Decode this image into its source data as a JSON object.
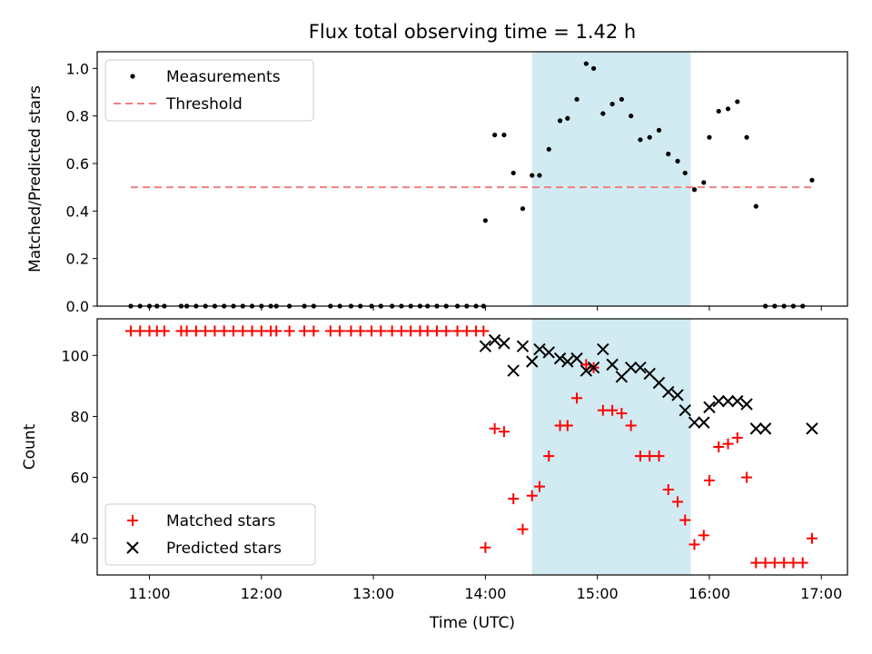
{
  "chart_data": [
    {
      "type": "scatter",
      "title": "Flux total observing time = 1.42 h",
      "ylabel": "Matched/Predicted stars",
      "xlim": [
        "10:32",
        "17:14"
      ],
      "ylim": [
        0,
        1.07
      ],
      "yticks": [
        0.0,
        0.2,
        0.4,
        0.6,
        0.8,
        1.0
      ],
      "ytick_labels": [
        "0.0",
        "0.2",
        "0.4",
        "0.6",
        "0.8",
        "1.0"
      ],
      "legend_position": "upper-left",
      "threshold": {
        "name": "Threshold",
        "value": 0.5,
        "x_start": "10:50",
        "x_end": "16:55",
        "color": "#f08080"
      },
      "highlight_span": {
        "start": "14:25",
        "end": "15:50",
        "color": "#add8e6"
      },
      "series": [
        {
          "name": "Measurements",
          "color": "#000000",
          "x": [
            "10:50",
            "10:55",
            "11:00",
            "11:04",
            "11:08",
            "11:17",
            "11:20",
            "11:25",
            "11:30",
            "11:35",
            "11:40",
            "11:45",
            "11:50",
            "11:55",
            "12:00",
            "12:05",
            "12:08",
            "12:15",
            "12:23",
            "12:28",
            "12:37",
            "12:42",
            "12:48",
            "12:53",
            "12:59",
            "13:04",
            "13:10",
            "13:15",
            "13:20",
            "13:25",
            "13:29",
            "13:34",
            "13:39",
            "13:45",
            "13:50",
            "13:55",
            "13:59",
            "14:00",
            "14:05",
            "14:10",
            "14:15",
            "14:20",
            "14:25",
            "14:29",
            "14:34",
            "14:40",
            "14:44",
            "14:49",
            "14:54",
            "14:58",
            "15:03",
            "15:08",
            "15:13",
            "15:18",
            "15:23",
            "15:28",
            "15:33",
            "15:38",
            "15:43",
            "15:47",
            "15:52",
            "15:57",
            "16:00",
            "16:05",
            "16:10",
            "16:15",
            "16:20",
            "16:25",
            "16:30",
            "16:35",
            "16:40",
            "16:45",
            "16:50",
            "16:55"
          ],
          "y": [
            0,
            0,
            0,
            0,
            0,
            0,
            0,
            0,
            0,
            0,
            0,
            0,
            0,
            0,
            0,
            0,
            0,
            0,
            0,
            0,
            0,
            0,
            0,
            0,
            0,
            0,
            0,
            0,
            0,
            0,
            0,
            0,
            0,
            0,
            0,
            0,
            0,
            0.36,
            0.72,
            0.72,
            0.56,
            0.41,
            0.55,
            0.55,
            0.66,
            0.78,
            0.79,
            0.87,
            1.02,
            1.0,
            0.81,
            0.85,
            0.87,
            0.8,
            0.7,
            0.71,
            0.74,
            0.64,
            0.61,
            0.56,
            0.49,
            0.52,
            0.71,
            0.82,
            0.83,
            0.86,
            0.71,
            0.42,
            0,
            0,
            0,
            0,
            0,
            0.53
          ]
        }
      ]
    },
    {
      "type": "scatter",
      "xlabel": "Time (UTC)",
      "ylabel": "Count",
      "xlim": [
        "10:32",
        "17:14"
      ],
      "ylim": [
        28,
        112
      ],
      "xticks": [
        "11:00",
        "12:00",
        "13:00",
        "14:00",
        "15:00",
        "16:00",
        "17:00"
      ],
      "yticks": [
        40,
        60,
        80,
        100
      ],
      "ytick_labels": [
        "40",
        "60",
        "80",
        "100"
      ],
      "legend_position": "lower-left",
      "highlight_span": {
        "start": "14:25",
        "end": "15:50",
        "color": "#add8e6"
      },
      "series": [
        {
          "name": "Matched stars",
          "marker": "plus",
          "color": "#ff0000",
          "x": [
            "10:50",
            "10:55",
            "11:00",
            "11:04",
            "11:08",
            "11:17",
            "11:20",
            "11:25",
            "11:30",
            "11:35",
            "11:40",
            "11:45",
            "11:50",
            "11:55",
            "12:00",
            "12:05",
            "12:08",
            "12:15",
            "12:23",
            "12:28",
            "12:37",
            "12:42",
            "12:48",
            "12:53",
            "12:59",
            "13:04",
            "13:10",
            "13:15",
            "13:20",
            "13:25",
            "13:29",
            "13:34",
            "13:39",
            "13:45",
            "13:50",
            "13:55",
            "13:59",
            "14:00",
            "14:05",
            "14:10",
            "14:15",
            "14:20",
            "14:25",
            "14:29",
            "14:34",
            "14:40",
            "14:44",
            "14:49",
            "14:54",
            "14:58",
            "15:03",
            "15:08",
            "15:13",
            "15:18",
            "15:23",
            "15:28",
            "15:33",
            "15:38",
            "15:43",
            "15:47",
            "15:52",
            "15:57",
            "16:00",
            "16:05",
            "16:10",
            "16:15",
            "16:20",
            "16:25",
            "16:30",
            "16:35",
            "16:40",
            "16:45",
            "16:50",
            "16:55"
          ],
          "y": [
            108,
            108,
            108,
            108,
            108,
            108,
            108,
            108,
            108,
            108,
            108,
            108,
            108,
            108,
            108,
            108,
            108,
            108,
            108,
            108,
            108,
            108,
            108,
            108,
            108,
            108,
            108,
            108,
            108,
            108,
            108,
            108,
            108,
            108,
            108,
            108,
            108,
            37,
            76,
            75,
            53,
            43,
            54,
            57,
            67,
            77,
            77,
            86,
            97,
            96,
            82,
            82,
            81,
            77,
            67,
            67,
            67,
            56,
            52,
            46,
            38,
            41,
            59,
            70,
            71,
            73,
            60,
            32,
            32,
            32,
            32,
            32,
            32,
            40
          ]
        },
        {
          "name": "Predicted stars",
          "marker": "x",
          "color": "#000000",
          "x": [
            "14:00",
            "14:05",
            "14:10",
            "14:15",
            "14:20",
            "14:25",
            "14:29",
            "14:34",
            "14:40",
            "14:44",
            "14:49",
            "14:54",
            "14:58",
            "15:03",
            "15:08",
            "15:13",
            "15:18",
            "15:23",
            "15:28",
            "15:33",
            "15:38",
            "15:43",
            "15:47",
            "15:52",
            "15:57",
            "16:00",
            "16:05",
            "16:10",
            "16:15",
            "16:20",
            "16:25",
            "16:30",
            "16:55"
          ],
          "y": [
            103,
            105,
            104,
            95,
            103,
            98,
            102,
            101,
            99,
            98,
            99,
            95,
            96,
            102,
            97,
            93,
            96,
            96,
            94,
            91,
            88,
            87,
            82,
            78,
            78,
            83,
            85,
            85,
            85,
            84,
            76,
            76,
            76
          ]
        }
      ]
    }
  ]
}
